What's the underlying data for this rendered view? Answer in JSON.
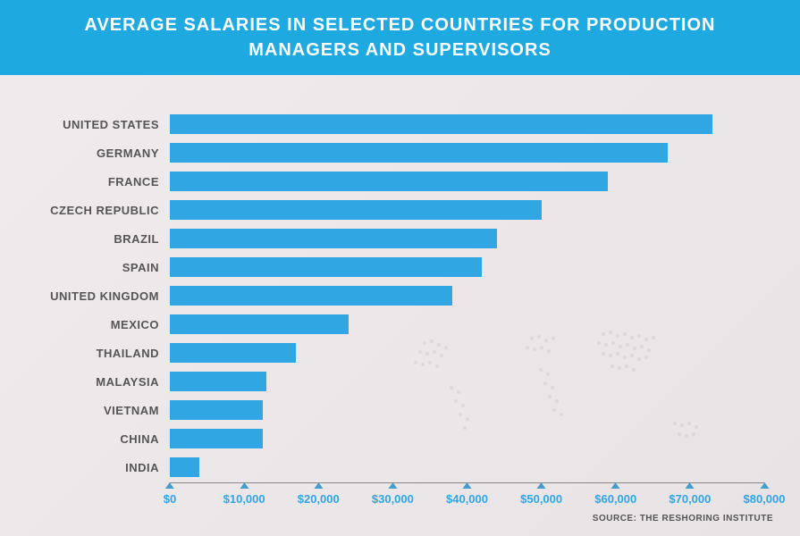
{
  "header": {
    "title_line1": "AVERAGE SALARIES IN SELECTED COUNTRIES FOR PRODUCTION",
    "title_line2": "MANAGERS AND SUPERVISORS"
  },
  "chart": {
    "type": "bar",
    "orientation": "horizontal",
    "xlim": [
      0,
      80000
    ],
    "xtick_step": 10000,
    "xticks": [
      {
        "value": 0,
        "label": "$0"
      },
      {
        "value": 10000,
        "label": "$10,000"
      },
      {
        "value": 20000,
        "label": "$20,000"
      },
      {
        "value": 30000,
        "label": "$30,000"
      },
      {
        "value": 40000,
        "label": "$40,000"
      },
      {
        "value": 50000,
        "label": "$50,000"
      },
      {
        "value": 60000,
        "label": "$60,000"
      },
      {
        "value": 70000,
        "label": "$70,000"
      },
      {
        "value": 80000,
        "label": "$80,000"
      }
    ],
    "bar_color": "#30a6e2",
    "tick_marker_color": "#439ecc",
    "tick_label_color": "#30a6e2",
    "axis_line_color": "#888888",
    "label_color": "#555555",
    "label_fontsize": 13,
    "tick_fontsize": 13,
    "data": [
      {
        "country": "UNITED STATES",
        "value": 73000
      },
      {
        "country": "GERMANY",
        "value": 67000
      },
      {
        "country": "FRANCE",
        "value": 59000
      },
      {
        "country": "CZECH REPUBLIC",
        "value": 50000
      },
      {
        "country": "BRAZIL",
        "value": 44000
      },
      {
        "country": "SPAIN",
        "value": 42000
      },
      {
        "country": "UNITED KINGDOM",
        "value": 38000
      },
      {
        "country": "MEXICO",
        "value": 24000
      },
      {
        "country": "THAILAND",
        "value": 17000
      },
      {
        "country": "MALAYSIA",
        "value": 13000
      },
      {
        "country": "VIETNAM",
        "value": 12500
      },
      {
        "country": "CHINA",
        "value": 12500
      },
      {
        "country": "INDIA",
        "value": 4000
      }
    ]
  },
  "source": {
    "prefix": "SOURCE:",
    "text": "THE RESHORING INSTITUTE"
  },
  "colors": {
    "header_bg": "#1ea9e1",
    "header_text": "#ffffff",
    "body_bg_start": "#f0ebec",
    "body_bg_end": "#e8e3e5"
  }
}
